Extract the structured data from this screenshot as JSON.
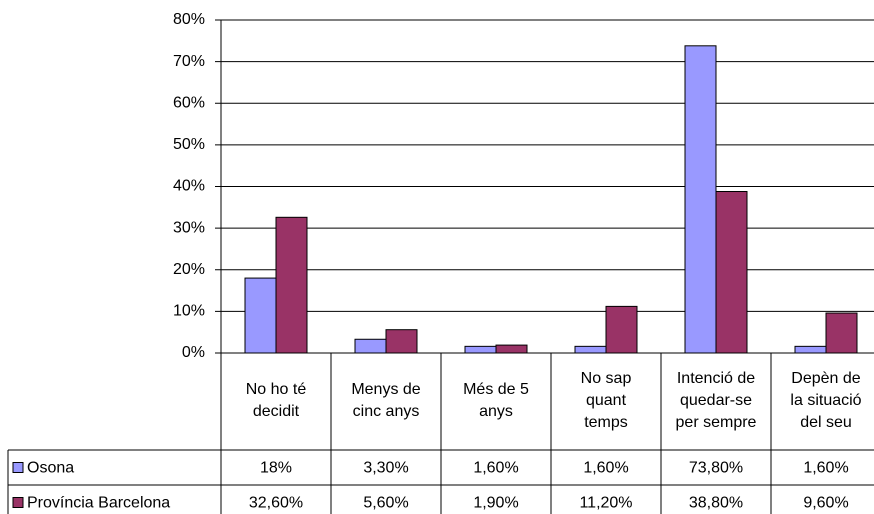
{
  "chart_data": {
    "type": "bar",
    "categories": [
      [
        "No ho té",
        "decidit"
      ],
      [
        "Menys de",
        "cinc anys"
      ],
      [
        "Més de 5",
        "anys"
      ],
      [
        "No sap",
        "quant",
        "temps"
      ],
      [
        "Intenció de",
        "quedar-se",
        "per sempre"
      ],
      [
        "Depèn de",
        "la situació",
        "del seu"
      ]
    ],
    "series": [
      {
        "name": "Osona",
        "color": "#9999ff",
        "values": [
          18,
          3.3,
          1.6,
          1.6,
          73.8,
          1.6
        ],
        "value_labels": [
          "18%",
          "3,30%",
          "1,60%",
          "1,60%",
          "73,80%",
          "1,60%"
        ]
      },
      {
        "name": "Província Barcelona",
        "color": "#993366",
        "values": [
          32.6,
          5.6,
          1.9,
          11.2,
          38.8,
          9.6
        ],
        "value_labels": [
          "32,60%",
          "5,60%",
          "1,90%",
          "11,20%",
          "38,80%",
          "9,60%"
        ]
      }
    ],
    "ylim": [
      0,
      80
    ],
    "yticks": [
      {
        "value": 0,
        "label": "0%"
      },
      {
        "value": 10,
        "label": "10%"
      },
      {
        "value": 20,
        "label": "20%"
      },
      {
        "value": 30,
        "label": "30%"
      },
      {
        "value": 40,
        "label": "40%"
      },
      {
        "value": 50,
        "label": "50%"
      },
      {
        "value": 60,
        "label": "60%"
      },
      {
        "value": 70,
        "label": "70%"
      },
      {
        "value": 80,
        "label": "80%"
      }
    ],
    "grid": true
  }
}
